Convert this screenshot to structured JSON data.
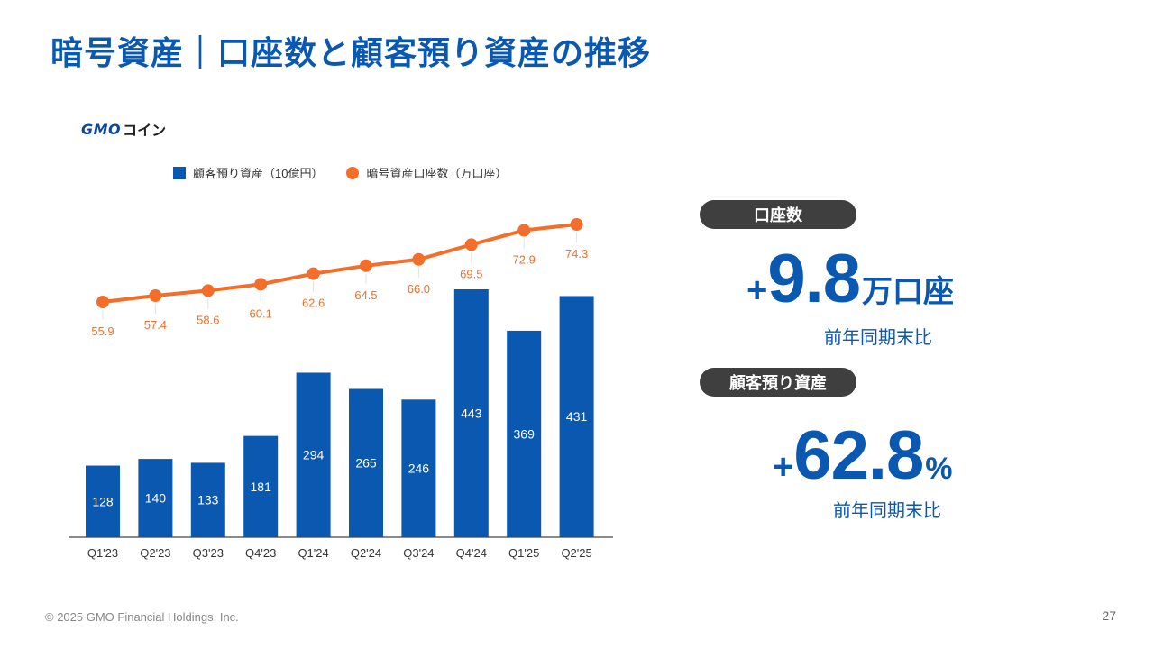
{
  "title": "暗号資産｜口座数と顧客預り資産の推移",
  "logo": {
    "gmo": "GMO",
    "coin": "コイン"
  },
  "legend": {
    "bars": "顧客預り資産（10億円）",
    "line": "暗号資産口座数（万口座）"
  },
  "colors": {
    "bar": "#0a58b0",
    "line": "#f26e2a",
    "accent": "#0a58b0",
    "pill": "#3f3f3f"
  },
  "chart_data": {
    "type": "bar",
    "categories": [
      "Q1'23",
      "Q2'23",
      "Q3'23",
      "Q4'23",
      "Q1'24",
      "Q2'24",
      "Q3'24",
      "Q4'24",
      "Q1'25",
      "Q2'25"
    ],
    "series": [
      {
        "name": "顧客預り資産（10億円）",
        "type": "bar",
        "values": [
          128,
          140,
          133,
          181,
          294,
          265,
          246,
          443,
          369,
          431
        ]
      },
      {
        "name": "暗号資産口座数（万口座）",
        "type": "line",
        "values": [
          55.9,
          57.4,
          58.6,
          60.1,
          62.6,
          64.5,
          66.0,
          69.5,
          72.9,
          74.3
        ]
      }
    ],
    "title": "",
    "xlabel": "",
    "ylabel": "",
    "grid": false,
    "legend": "top"
  },
  "kpi": [
    {
      "label": "口座数",
      "sign": "+",
      "value": "9.8",
      "unit": "万口座",
      "note": "前年同期末比"
    },
    {
      "label": "顧客預り資産",
      "sign": "+",
      "value": "62.8",
      "unit": "%",
      "note": "前年同期末比"
    }
  ],
  "footer": "© 2025 GMO Financial Holdings, Inc.",
  "page_number": "27"
}
